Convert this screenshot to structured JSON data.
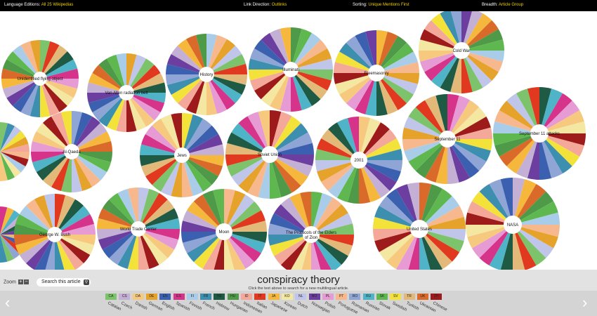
{
  "topbar": {
    "language_label": "Language Editions:",
    "language_value": "All 25 Wikipedias",
    "direction_label": "Link Direction:",
    "direction_value": "Outlinks",
    "sorting_label": "Sorting:",
    "sorting_value": "Unique Mentions First",
    "breadth_label": "Breadth:",
    "breadth_value": "Article Group"
  },
  "wheels": [
    "Unidentified flying object",
    "Van Allen radiation belt",
    "History",
    "Illuminati",
    "Freemasonry",
    "Cold War",
    "Al-Qaeda",
    "Jews",
    "Soviet Union",
    "2001",
    "September 11",
    "September 11 attacks",
    "George W. Bush",
    "World Trade Center",
    "Moon",
    "The Protocols of the Elders of Zion",
    "United States",
    "NASA"
  ],
  "bottom": {
    "zoom_label": "Zoom",
    "zoom_in": "+",
    "zoom_out": "−",
    "search_label": "Search this article",
    "search_icon": "magnifier-icon",
    "article_title": "conspiracy theory",
    "hint": "Click the text above to search for a new multilingual article.",
    "prev_arrow": "‹",
    "next_arrow": "›"
  },
  "languages": [
    {
      "code": "CA",
      "name": "Catalan",
      "color": "#7dc36b"
    },
    {
      "code": "CS",
      "name": "Czech",
      "color": "#c5b0d5"
    },
    {
      "code": "DA",
      "name": "Danish",
      "color": "#f7c97e"
    },
    {
      "code": "DE",
      "name": "German",
      "color": "#e5a32b"
    },
    {
      "code": "EN",
      "name": "English",
      "color": "#3b60b0"
    },
    {
      "code": "ES",
      "name": "Spanish",
      "color": "#d6338a"
    },
    {
      "code": "FI",
      "name": "Finnish",
      "color": "#a9cde8"
    },
    {
      "code": "FR",
      "name": "French",
      "color": "#3d8fb0"
    },
    {
      "code": "HE",
      "name": "Hebrew",
      "color": "#1f5a45"
    },
    {
      "code": "HU",
      "name": "Hungarian",
      "color": "#4e9a48"
    },
    {
      "code": "ID",
      "name": "Indonesian",
      "color": "#f4a89a"
    },
    {
      "code": "IT",
      "name": "Italian",
      "color": "#e0391f"
    },
    {
      "code": "JA",
      "name": "Japanese",
      "color": "#f6b83c"
    },
    {
      "code": "KO",
      "name": "Korean",
      "color": "#f3e7a2"
    },
    {
      "code": "NL",
      "name": "Dutch",
      "color": "#bfc6ea"
    },
    {
      "code": "NO",
      "name": "Norwegian",
      "color": "#6c3ea0"
    },
    {
      "code": "PL",
      "name": "Polish",
      "color": "#e69bd4"
    },
    {
      "code": "PT",
      "name": "Portuguese",
      "color": "#f8b88e"
    },
    {
      "code": "RO",
      "name": "Romanian",
      "color": "#8fa5d6"
    },
    {
      "code": "RU",
      "name": "Russian",
      "color": "#4fb4c8"
    },
    {
      "code": "SK",
      "name": "Slovak",
      "color": "#5fb84f"
    },
    {
      "code": "SV",
      "name": "Swedish",
      "color": "#f2e23a"
    },
    {
      "code": "TR",
      "name": "Turkish",
      "color": "#e3b97a"
    },
    {
      "code": "UK",
      "name": "Ukrainian",
      "color": "#d96a2a"
    },
    {
      "code": "ZH",
      "name": "Chinese",
      "color": "#9e1b1b"
    }
  ]
}
